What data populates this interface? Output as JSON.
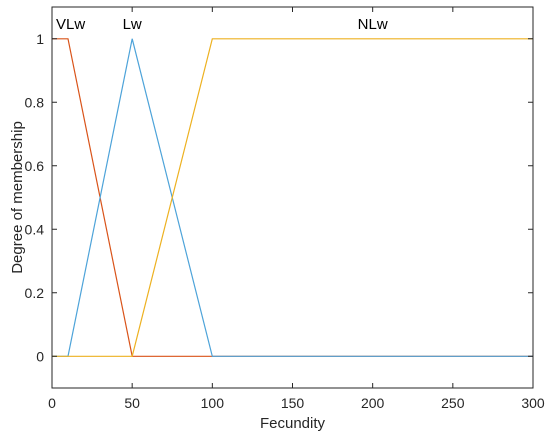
{
  "chart_data": {
    "type": "line",
    "title": "",
    "xlabel": "Fecundity",
    "ylabel": "Degree of membership",
    "xlim": [
      0,
      300
    ],
    "ylim": [
      -0.1,
      1.1
    ],
    "xticks": [
      0,
      50,
      100,
      150,
      200,
      250,
      300
    ],
    "yticks": [
      0,
      0.2,
      0.4,
      0.6,
      0.8,
      1
    ],
    "grid": false,
    "series": [
      {
        "name": "VLw",
        "color": "#D95319",
        "x": [
          0,
          10,
          50,
          300
        ],
        "y": [
          1,
          1,
          0,
          0
        ],
        "label_at": [
          0,
          1
        ]
      },
      {
        "name": "Lw",
        "color": "#4DA3D9",
        "x": [
          0,
          10,
          50,
          100,
          300
        ],
        "y": [
          0,
          0,
          1,
          0,
          0
        ],
        "label_at": [
          50,
          1
        ]
      },
      {
        "name": "NLw",
        "color": "#EDB120",
        "x": [
          0,
          50,
          100,
          300
        ],
        "y": [
          0,
          0,
          1,
          1
        ],
        "label_at": [
          200,
          1
        ]
      }
    ]
  }
}
